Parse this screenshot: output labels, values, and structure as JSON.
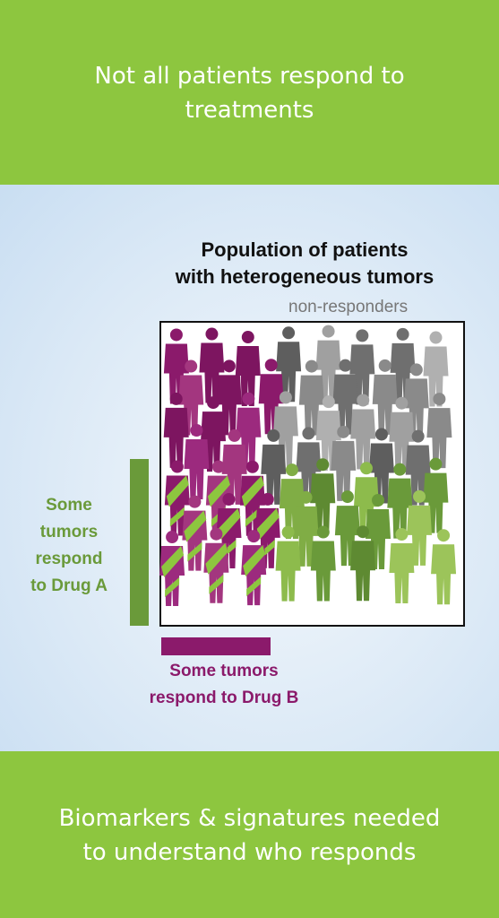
{
  "header": {
    "lines": [
      "Not all patients respond to",
      "treatments"
    ]
  },
  "diagram": {
    "title": [
      "Population of patients",
      "with heterogeneous tumors"
    ],
    "non_responders": "non-responders",
    "drug_a": [
      "Some",
      "tumors",
      "respond",
      "to Drug A"
    ],
    "drug_b": [
      "Some tumors",
      "respond to Drug B"
    ]
  },
  "footer": {
    "lines": [
      "Biomarkers & signatures needed",
      "to understand who responds"
    ]
  }
}
